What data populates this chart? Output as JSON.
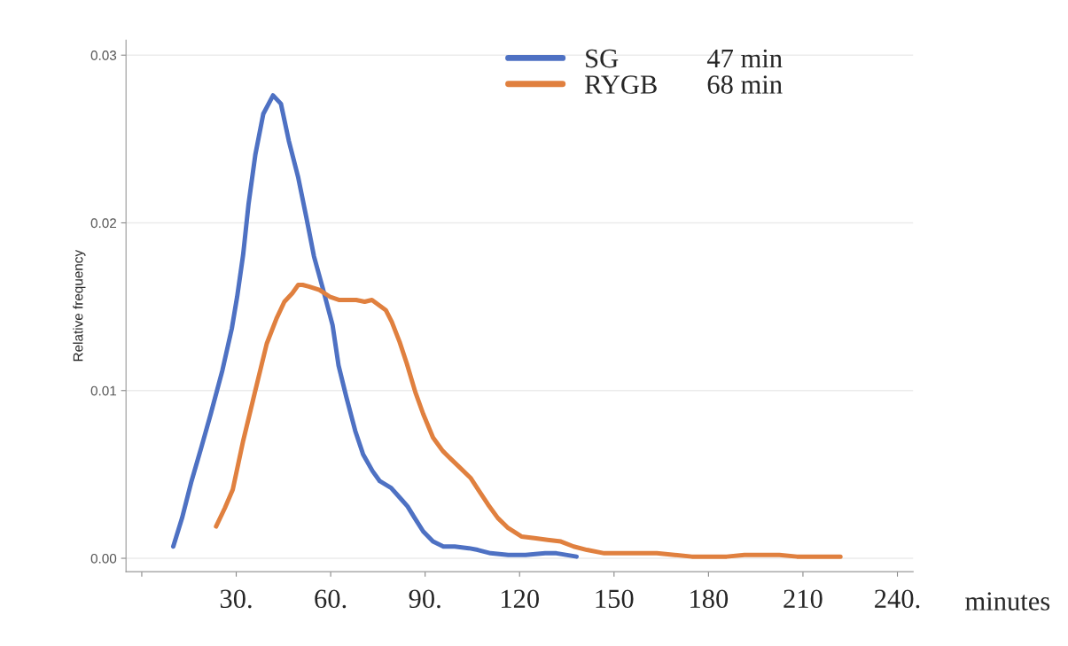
{
  "chart_data": {
    "type": "line",
    "ylabel": "Relative frequency",
    "xlabel": "minutes",
    "annotations": [
      "47 min",
      "68 min"
    ],
    "xlim": [
      -5,
      245
    ],
    "ylim": [
      -0.0008,
      0.0309
    ],
    "xticks": [
      {
        "value": 0,
        "label": null
      },
      {
        "value": 30,
        "label": "30."
      },
      {
        "value": 60,
        "label": "60."
      },
      {
        "value": 90,
        "label": "90."
      },
      120,
      150,
      180,
      210,
      {
        "value": 240,
        "label": "240."
      }
    ],
    "yticks": [
      {
        "value": 0,
        "label": "0.00"
      },
      {
        "value": 0.01,
        "label": "0.01"
      },
      {
        "value": 0.02,
        "label": "0.02"
      },
      {
        "value": 0.03,
        "label": "0.03"
      }
    ],
    "grid": "y",
    "legend": "top",
    "marker": "none",
    "line_style": "solid",
    "series": [
      {
        "name": "SG",
        "color": "#4e71c3",
        "x": [
          10.0,
          12.8,
          15.8,
          18.9,
          21.9,
          25.6,
          28.6,
          30.3,
          32.2,
          33.9,
          36.1,
          38.6,
          41.7,
          44.2,
          46.7,
          49.7,
          52.2,
          54.7,
          57.5,
          60.6,
          62.5,
          65.0,
          67.8,
          70.3,
          73.3,
          75.6,
          79.2,
          82.5,
          84.4,
          86.7,
          89.4,
          92.5,
          95.8,
          99.4,
          103.9,
          106.7,
          110.8,
          116.4,
          121.9,
          128.1,
          131.7,
          138.1
        ],
        "values": [
          0.0007,
          0.0024,
          0.0046,
          0.0066,
          0.0086,
          0.0112,
          0.0137,
          0.0156,
          0.0181,
          0.0211,
          0.0241,
          0.0265,
          0.0276,
          0.0271,
          0.0249,
          0.0227,
          0.0204,
          0.018,
          0.0161,
          0.0139,
          0.0115,
          0.0096,
          0.0076,
          0.0062,
          0.0052,
          0.0046,
          0.0042,
          0.0035,
          0.0031,
          0.0024,
          0.0016,
          0.001,
          0.0007,
          0.0007,
          0.0006,
          0.0005,
          0.0003,
          0.0002,
          0.0002,
          0.0003,
          0.0003,
          0.0001
        ]
      },
      {
        "name": "RYGB",
        "color": "#e0803f",
        "x": [
          23.6,
          26.4,
          28.9,
          32.2,
          35.8,
          39.7,
          42.8,
          45.3,
          47.8,
          49.7,
          51.1,
          53.1,
          56.4,
          59.7,
          62.8,
          65.8,
          68.1,
          70.8,
          73.1,
          75.3,
          77.5,
          79.4,
          81.9,
          84.2,
          86.9,
          89.4,
          92.5,
          95.6,
          98.3,
          101.1,
          104.4,
          107.2,
          110.0,
          113.1,
          116.4,
          120.6,
          124.7,
          128.9,
          133.1,
          137.2,
          141.4,
          146.9,
          152.5,
          158.1,
          163.6,
          169.2,
          174.7,
          180.3,
          185.8,
          191.4,
          196.9,
          202.5,
          208.1,
          213.6,
          221.9
        ],
        "values": [
          0.0019,
          0.003,
          0.0041,
          0.007,
          0.0098,
          0.0128,
          0.0143,
          0.0153,
          0.0158,
          0.0163,
          0.0163,
          0.0162,
          0.016,
          0.0156,
          0.0154,
          0.0154,
          0.0154,
          0.0153,
          0.0154,
          0.0151,
          0.0148,
          0.0141,
          0.0129,
          0.0116,
          0.0099,
          0.0086,
          0.0072,
          0.0064,
          0.0059,
          0.0054,
          0.0048,
          0.004,
          0.0032,
          0.0024,
          0.0018,
          0.0013,
          0.0012,
          0.0011,
          0.001,
          0.0007,
          0.0005,
          0.0003,
          0.0003,
          0.0003,
          0.0003,
          0.0002,
          0.0001,
          0.0001,
          0.0001,
          0.0002,
          0.0002,
          0.0002,
          0.0001,
          0.0001,
          0.0001
        ]
      }
    ]
  }
}
